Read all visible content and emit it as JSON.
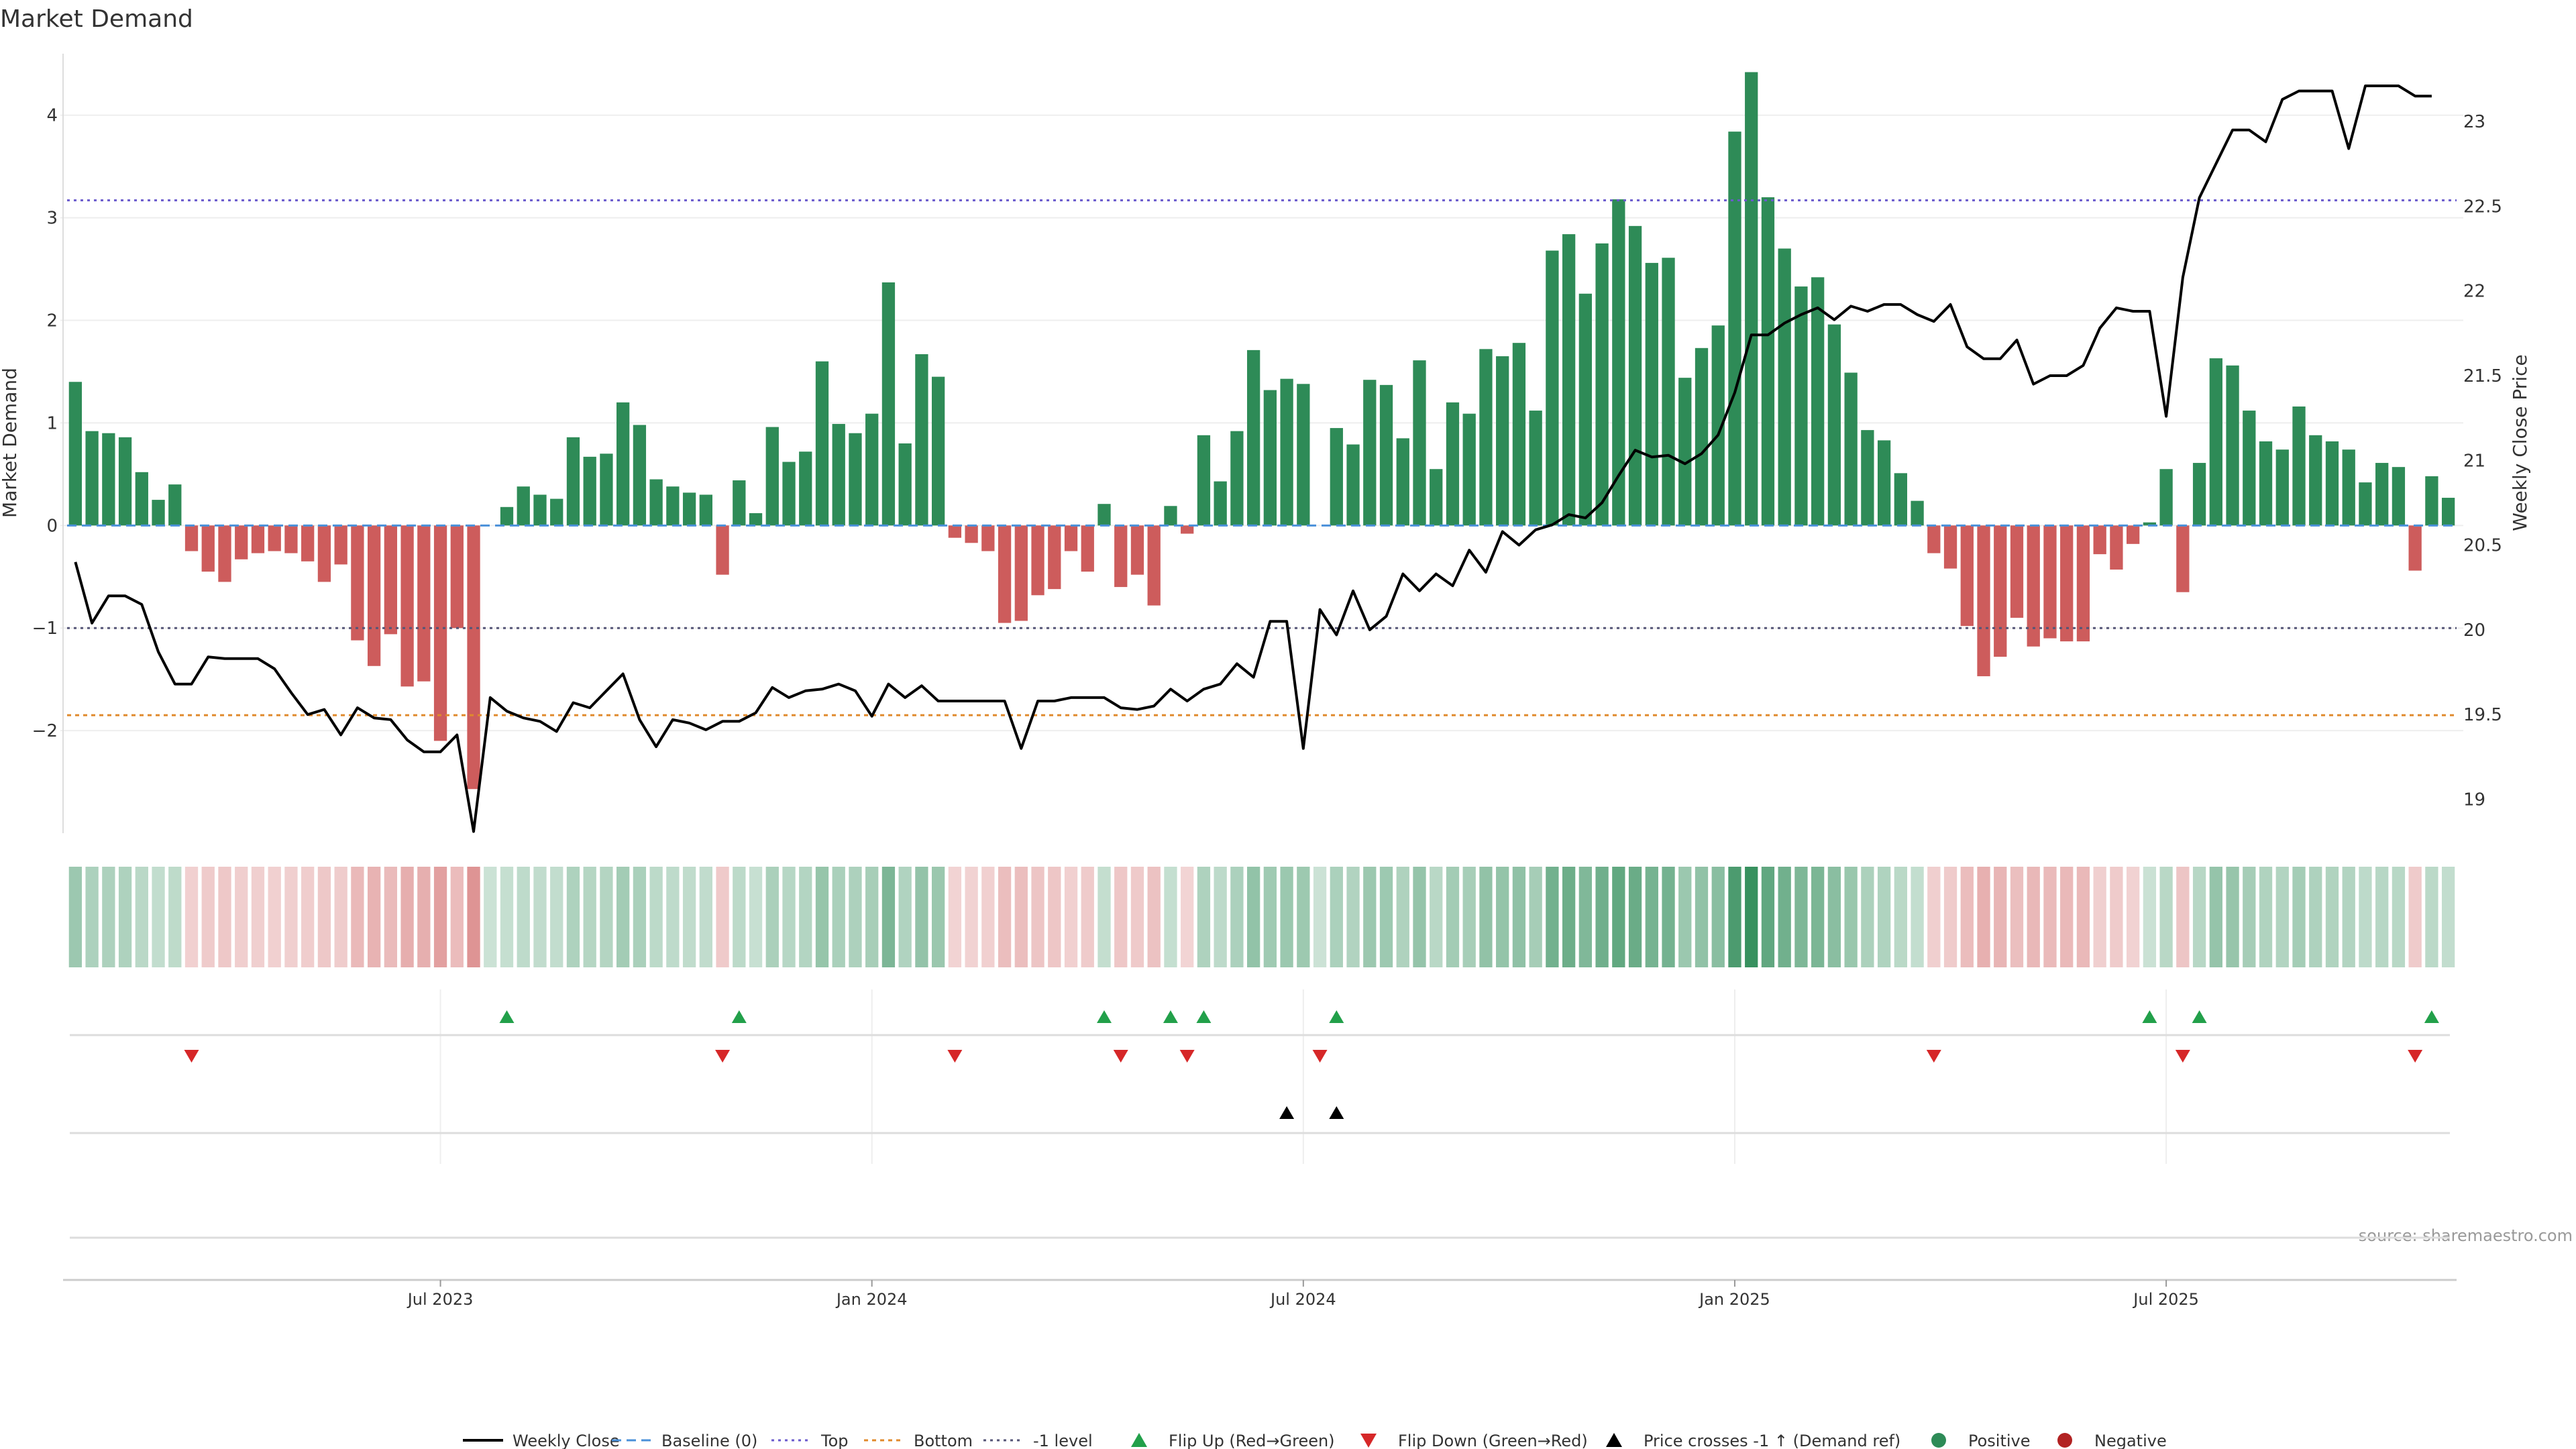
{
  "chart_data": {
    "type": "bar",
    "title": "Market Demand",
    "ylabel": "Market Demand",
    "y2label": "Weekly Close Price",
    "ylim": [
      -3,
      4.6
    ],
    "y2lim": [
      18.8,
      23.4
    ],
    "yticks": [
      -2,
      -1,
      0,
      1,
      2,
      3,
      4
    ],
    "yticklabels": [
      "−2",
      "−1",
      "0",
      "1",
      "2",
      "3",
      "4"
    ],
    "y2ticks": [
      19,
      19.5,
      20,
      20.5,
      21,
      21.5,
      22,
      22.5,
      23
    ],
    "y2ticklabels": [
      "19",
      "19.5",
      "20",
      "20.5",
      "21",
      "21.5",
      "22",
      "22.5",
      "23"
    ],
    "xticks": [
      {
        "label": "Jul 2023",
        "index": 22
      },
      {
        "label": "Jan 2024",
        "index": 48
      },
      {
        "label": "Jul 2024",
        "index": 74
      },
      {
        "label": "Jan 2025",
        "index": 100
      },
      {
        "label": "Jul 2025",
        "index": 126
      }
    ],
    "reference_levels": {
      "top": 3.17,
      "bottom": -1.85,
      "minus_one": -1.0,
      "baseline": 0
    },
    "demand": [
      1.4,
      0.92,
      0.9,
      0.86,
      0.52,
      0.25,
      0.4,
      -0.25,
      -0.45,
      -0.55,
      -0.33,
      -0.27,
      -0.25,
      -0.27,
      -0.35,
      -0.55,
      -0.38,
      -1.12,
      -1.37,
      -1.06,
      -1.57,
      -1.52,
      -2.1,
      -1.0,
      -2.57,
      0,
      0.18,
      0.38,
      0.3,
      0.26,
      0.86,
      0.67,
      0.7,
      1.2,
      0.98,
      0.45,
      0.38,
      0.32,
      0.3,
      -0.48,
      0.44,
      0.12,
      0.96,
      0.62,
      0.72,
      1.6,
      0.99,
      0.9,
      1.09,
      2.37,
      0.8,
      1.67,
      1.45,
      -0.12,
      -0.17,
      -0.25,
      -0.95,
      -0.93,
      -0.68,
      -0.62,
      -0.25,
      -0.45,
      0.21,
      -0.6,
      -0.48,
      -0.78,
      0.19,
      -0.08,
      0.88,
      0.43,
      0.92,
      1.71,
      1.32,
      1.43,
      1.38,
      0,
      0.95,
      0.79,
      1.42,
      1.37,
      0.85,
      1.61,
      0.55,
      1.2,
      1.09,
      1.72,
      1.65,
      1.78,
      1.12,
      2.68,
      2.84,
      2.26,
      2.75,
      3.18,
      2.92,
      2.56,
      2.61,
      1.44,
      1.73,
      1.95,
      3.84,
      4.42,
      3.2,
      2.7,
      2.33,
      2.42,
      1.96,
      1.49,
      0.93,
      0.83,
      0.51,
      0.24,
      -0.27,
      -0.42,
      -0.98,
      -1.47,
      -1.28,
      -0.9,
      -1.18,
      -1.1,
      -1.13,
      -1.13,
      -0.28,
      -0.43,
      -0.18,
      0.03,
      0.55,
      -0.65,
      0.61,
      1.63,
      1.56,
      1.12,
      0.82,
      0.74,
      1.16,
      0.88,
      0.82,
      0.74,
      0.42,
      0.61,
      0.57,
      -0.44,
      0.48,
      0.27
    ],
    "weekly_close": [
      20.4,
      20.04,
      20.2,
      20.2,
      20.15,
      19.87,
      19.68,
      19.68,
      19.84,
      19.83,
      19.83,
      19.83,
      19.77,
      19.63,
      19.5,
      19.53,
      19.38,
      19.54,
      19.48,
      19.47,
      19.35,
      19.28,
      19.28,
      19.38,
      18.81,
      19.6,
      19.52,
      19.48,
      19.46,
      19.4,
      19.57,
      19.54,
      19.64,
      19.74,
      19.47,
      19.31,
      19.47,
      19.45,
      19.41,
      19.46,
      19.46,
      19.51,
      19.66,
      19.6,
      19.64,
      19.65,
      19.68,
      19.64,
      19.49,
      19.68,
      19.6,
      19.67,
      19.58,
      19.58,
      19.58,
      19.58,
      19.58,
      19.3,
      19.58,
      19.58,
      19.6,
      19.6,
      19.6,
      19.54,
      19.53,
      19.55,
      19.65,
      19.58,
      19.65,
      19.68,
      19.8,
      19.72,
      20.05,
      20.05,
      19.3,
      20.12,
      19.97,
      20.23,
      20.0,
      20.08,
      20.33,
      20.23,
      20.33,
      20.26,
      20.47,
      20.34,
      20.58,
      20.5,
      20.59,
      20.62,
      20.68,
      20.66,
      20.75,
      20.91,
      21.06,
      21.02,
      21.03,
      20.98,
      21.04,
      21.15,
      21.4,
      21.74,
      21.74,
      21.81,
      21.86,
      21.9,
      21.83,
      21.91,
      21.88,
      21.92,
      21.92,
      21.86,
      21.82,
      21.92,
      21.67,
      21.6,
      21.6,
      21.71,
      21.45,
      21.5,
      21.5,
      21.56,
      21.78,
      21.9,
      21.88,
      21.88,
      21.26,
      22.08,
      22.55,
      22.75,
      22.95,
      22.95,
      22.88,
      23.13,
      23.18,
      23.18,
      23.18,
      22.84,
      23.21,
      23.21,
      23.21,
      23.15,
      23.15
    ],
    "flip_up": [
      26,
      40,
      62,
      66,
      68,
      76,
      125,
      128,
      142
    ],
    "flip_down": [
      7,
      39,
      53,
      63,
      67,
      75,
      112,
      127,
      141
    ],
    "price_cross_up": [
      73,
      76
    ],
    "legend": [
      {
        "label": "Weekly Close",
        "kind": "line"
      },
      {
        "label": "Baseline (0)",
        "kind": "dash"
      },
      {
        "label": "Top",
        "kind": "dot-purple"
      },
      {
        "label": "Bottom",
        "kind": "dot-orange"
      },
      {
        "label": "-1 level",
        "kind": "dot-gray"
      },
      {
        "label": "Flip Up (Red→Green)",
        "kind": "tri-up-green"
      },
      {
        "label": "Flip Down (Green→Red)",
        "kind": "tri-down-red"
      },
      {
        "label": "Price crosses -1 ↑ (Demand ref)",
        "kind": "tri-up-black"
      },
      {
        "label": "Positive",
        "kind": "dot-green"
      },
      {
        "label": "Negative",
        "kind": "dot-red"
      }
    ],
    "source": "source: sharemaestro.com"
  },
  "colors": {
    "positive": "#2e8b57",
    "negative": "#cd5c5c",
    "line": "#000000",
    "top": "#6a5acd",
    "bottom": "#e08a2c",
    "minus_one": "#555577",
    "baseline": "#4a90d9",
    "flip_up": "#22a04a",
    "flip_down": "#d62728",
    "neg_dot": "#b22222"
  }
}
